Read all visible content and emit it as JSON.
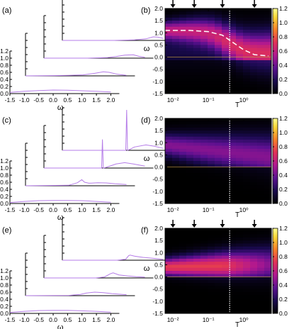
{
  "figure": {
    "heatmap_ylabel": "ω",
    "heatmap_xlabel": "T",
    "waterfall_xlabel": "ω",
    "waterfall_yticks": [
      "0.0",
      "0.2",
      "0.4",
      "0.6",
      "0.8",
      "1.0",
      "1.2"
    ],
    "waterfall_xticks": [
      "-1.5",
      "-1.0",
      "-0.5",
      "0.0",
      "0.5",
      "1.0",
      "1.5",
      "2.0"
    ],
    "heatmap_yticks": [
      "-1.5",
      "-1.0",
      "-0.5",
      "0.0",
      "0.5",
      "1.0",
      "1.5",
      "2.0"
    ],
    "heatmap_xticks": [
      "10⁻²",
      "10⁻¹",
      "10⁰"
    ],
    "colorbar_ticks": [
      "0.0",
      "0.2",
      "0.4",
      "0.6",
      "0.8",
      "1.0",
      "1.2"
    ],
    "colors": {
      "trace": "#b57ce8",
      "dashed": "#ffffff",
      "vline": "#ffffff",
      "zero_line": "#c8a040"
    }
  },
  "chart_data": [
    {
      "type": "line",
      "label": "(a)",
      "x_range": [
        -1.5,
        2.0
      ],
      "y_range": [
        0,
        1.2
      ],
      "series": [
        {
          "x": [
            -1.5,
            -1.0,
            -0.5,
            0.0,
            0.5,
            1.0,
            1.5,
            2.0
          ],
          "y": [
            0.05,
            0.09,
            0.12,
            0.14,
            0.13,
            0.11,
            0.09,
            0.06
          ]
        },
        {
          "x": [
            -1.5,
            -0.5,
            0.0,
            0.5,
            0.9,
            1.2,
            1.4,
            1.7,
            2.0
          ],
          "y": [
            0.0,
            0.01,
            0.02,
            0.04,
            0.1,
            0.16,
            0.14,
            0.06,
            0.02
          ]
        },
        {
          "x": [
            -1.5,
            0.0,
            0.7,
            1.0,
            1.3,
            1.6,
            1.8,
            2.0
          ],
          "y": [
            0.0,
            0.0,
            0.02,
            0.06,
            0.12,
            0.13,
            0.07,
            0.03
          ]
        },
        {
          "x": [
            -1.5,
            0.3,
            1.0,
            1.4,
            1.65,
            1.8,
            2.0
          ],
          "y": [
            0.0,
            0.0,
            0.02,
            0.06,
            0.14,
            0.13,
            0.08
          ]
        }
      ]
    },
    {
      "type": "heatmap",
      "label": "(b)",
      "x_scale": "log",
      "x_range": [
        0.006,
        6
      ],
      "y_range": [
        -1.5,
        2.0
      ],
      "z_range": [
        0,
        1.2
      ],
      "arrows_at_T": [
        0.01,
        0.04,
        0.25,
        2.0
      ],
      "vline_T": 0.4,
      "dashed_line": {
        "T": [
          0.006,
          0.03,
          0.1,
          0.25,
          0.5,
          1.0,
          2.0,
          5.0
        ],
        "omega": [
          1.1,
          1.1,
          1.05,
          0.9,
          0.6,
          0.3,
          0.1,
          0.05
        ]
      }
    },
    {
      "type": "line",
      "label": "(c)",
      "x_range": [
        -1.5,
        2.0
      ],
      "y_range": [
        0,
        1.2
      ],
      "series": [
        {
          "x": [
            -1.5,
            -1.0,
            -0.5,
            0.0,
            0.5,
            1.0,
            1.5,
            2.0
          ],
          "y": [
            0.04,
            0.08,
            0.11,
            0.12,
            0.12,
            0.11,
            0.08,
            0.05
          ]
        },
        {
          "x": [
            -1.5,
            0.0,
            0.3,
            0.45,
            0.55,
            0.7,
            1.0,
            1.3,
            1.6,
            2.0
          ],
          "y": [
            0.0,
            0.02,
            0.12,
            0.24,
            0.14,
            0.1,
            0.12,
            0.11,
            0.08,
            0.05
          ]
        },
        {
          "x": [
            -1.5,
            0.4,
            0.5,
            0.53,
            0.56,
            0.65,
            1.0,
            1.3,
            1.6,
            2.0
          ],
          "y": [
            0.0,
            0.0,
            0.0,
            0.85,
            0.0,
            0.02,
            0.12,
            0.16,
            0.12,
            0.06
          ]
        },
        {
          "x": [
            -1.5,
            0.6,
            0.7,
            0.73,
            0.76,
            0.85,
            1.0,
            1.4,
            1.7,
            2.0
          ],
          "y": [
            0.0,
            0.0,
            0.0,
            1.2,
            0.0,
            0.03,
            0.1,
            0.16,
            0.12,
            0.06
          ]
        }
      ]
    },
    {
      "type": "heatmap",
      "label": "(d)",
      "x_scale": "log",
      "x_range": [
        0.006,
        6
      ],
      "y_range": [
        -1.5,
        2.0
      ],
      "z_range": [
        0,
        1.2
      ],
      "vline_T": 0.4
    },
    {
      "type": "line",
      "label": "(e)",
      "x_range": [
        -1.5,
        2.0
      ],
      "y_range": [
        0,
        1.2
      ],
      "series": [
        {
          "x": [
            -1.5,
            -1.0,
            -0.5,
            0.0,
            0.5,
            1.0,
            1.5,
            2.0
          ],
          "y": [
            0.04,
            0.08,
            0.11,
            0.12,
            0.12,
            0.1,
            0.08,
            0.05
          ]
        },
        {
          "x": [
            -1.5,
            0.0,
            0.4,
            0.6,
            0.9,
            1.2,
            1.5,
            2.0
          ],
          "y": [
            0.0,
            0.01,
            0.05,
            0.1,
            0.14,
            0.12,
            0.08,
            0.04
          ]
        },
        {
          "x": [
            -1.5,
            0.3,
            0.6,
            0.8,
            0.9,
            1.1,
            1.4,
            1.7,
            2.0
          ],
          "y": [
            0.0,
            0.0,
            0.04,
            0.16,
            0.2,
            0.12,
            0.08,
            0.05,
            0.03
          ]
        },
        {
          "x": [
            -1.5,
            0.4,
            0.7,
            0.8,
            0.85,
            1.0,
            1.3,
            1.7,
            2.0
          ],
          "y": [
            0.0,
            0.0,
            0.04,
            0.18,
            0.2,
            0.16,
            0.11,
            0.07,
            0.03
          ]
        }
      ]
    },
    {
      "type": "heatmap",
      "label": "(f)",
      "x_scale": "log",
      "x_range": [
        0.006,
        6
      ],
      "y_range": [
        -1.5,
        2.0
      ],
      "z_range": [
        0,
        1.2
      ],
      "arrows_at_T": [
        0.01,
        0.04,
        0.25,
        2.0
      ],
      "vline_T": 0.4
    }
  ]
}
